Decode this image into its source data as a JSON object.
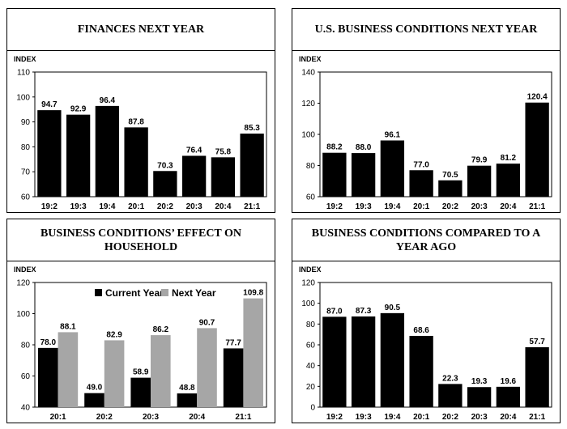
{
  "colors": {
    "bar_current": "#000000",
    "bar_next": "#a6a6a6"
  },
  "chart_data": [
    {
      "type": "bar",
      "title": "FINANCES NEXT YEAR",
      "ylabel": "INDEX",
      "categories": [
        "19:2",
        "19:3",
        "19:4",
        "20:1",
        "20:2",
        "20:3",
        "20:4",
        "21:1"
      ],
      "series": [
        {
          "values": [
            94.7,
            92.9,
            96.4,
            87.8,
            70.3,
            76.4,
            75.8,
            85.3
          ]
        }
      ],
      "ylim": [
        60,
        110
      ],
      "yticks": [
        60,
        70,
        80,
        90,
        100,
        110
      ],
      "grid": false
    },
    {
      "type": "bar",
      "title": "U.S. BUSINESS CONDITIONS NEXT YEAR",
      "ylabel": "INDEX",
      "categories": [
        "19:2",
        "19:3",
        "19:4",
        "20:1",
        "20:2",
        "20:3",
        "20:4",
        "21:1"
      ],
      "series": [
        {
          "values": [
            88.2,
            88.0,
            96.1,
            77.0,
            70.5,
            79.9,
            81.2,
            120.4
          ]
        }
      ],
      "ylim": [
        60,
        140
      ],
      "yticks": [
        60,
        80,
        100,
        120,
        140
      ],
      "grid": false
    },
    {
      "type": "bar",
      "title": "BUSINESS CONDITIONS’ EFFECT ON HOUSEHOLD",
      "ylabel": "INDEX",
      "categories": [
        "20:1",
        "20:2",
        "20:3",
        "20:4",
        "21:1"
      ],
      "series": [
        {
          "name": "Current Year",
          "values": [
            78.0,
            49.0,
            58.9,
            48.8,
            77.7
          ]
        },
        {
          "name": "Next Year",
          "values": [
            88.1,
            82.9,
            86.2,
            90.7,
            109.8
          ]
        }
      ],
      "ylim": [
        40,
        120
      ],
      "yticks": [
        40,
        60,
        80,
        100,
        120
      ],
      "legend": "top-center",
      "grid": false
    },
    {
      "type": "bar",
      "title": "BUSINESS CONDITIONS COMPARED TO A YEAR AGO",
      "ylabel": "INDEX",
      "categories": [
        "19:2",
        "19:3",
        "19:4",
        "20:1",
        "20:2",
        "20:3",
        "20:4",
        "21:1"
      ],
      "series": [
        {
          "values": [
            87.0,
            87.3,
            90.5,
            68.6,
            22.3,
            19.3,
            19.6,
            57.7
          ]
        }
      ],
      "ylim": [
        0,
        120
      ],
      "yticks": [
        0,
        20,
        40,
        60,
        80,
        100,
        120
      ],
      "grid": false
    }
  ]
}
